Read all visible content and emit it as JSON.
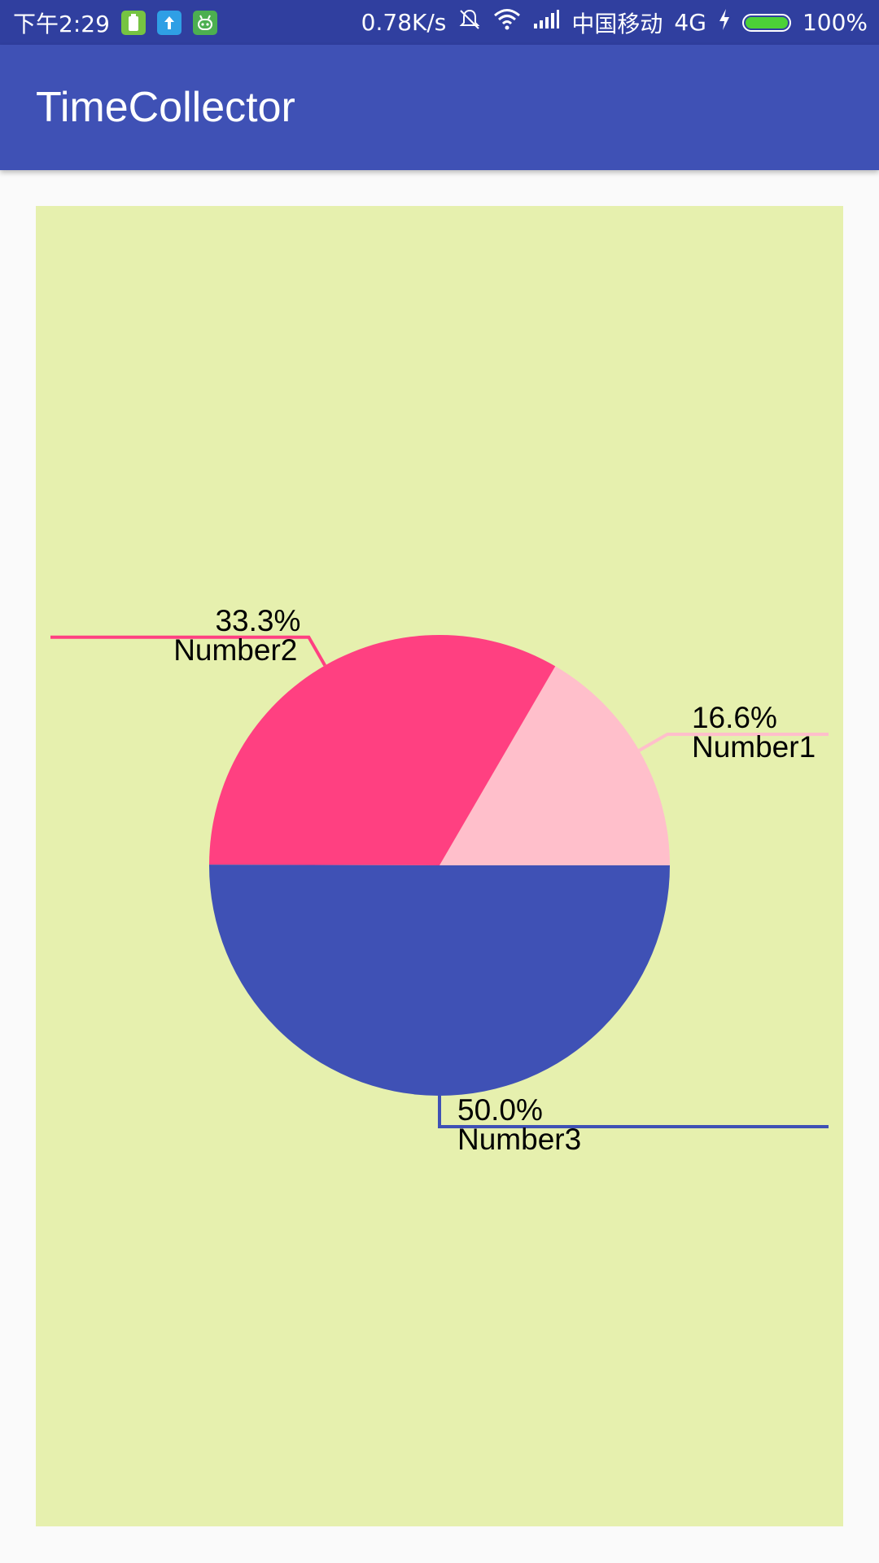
{
  "status_bar": {
    "time": "下午2:29",
    "network_speed": "0.78K/s",
    "carrier": "中国移动",
    "network_type": "4G",
    "battery_percent": "100%",
    "battery_level": 1.0,
    "icons": [
      "battery-notify-icon",
      "upload-icon",
      "android-icon",
      "mute-bell-icon",
      "wifi-icon",
      "signal-icon",
      "charging-icon",
      "battery-icon"
    ]
  },
  "app_bar": {
    "title": "TimeCollector"
  },
  "colors": {
    "status_bar": "#303f9f",
    "app_bar": "#3f51b5",
    "chart_background": "#e6f0ae",
    "page_background": "#fafafa"
  },
  "chart_data": {
    "type": "pie",
    "start_angle_deg": 0,
    "slices": [
      {
        "label": "Number1",
        "value": 16.6,
        "percent_label": "16.6%",
        "color": "#ffbfcb"
      },
      {
        "label": "Number2",
        "value": 33.3,
        "percent_label": "33.3%",
        "color": "#ff4081"
      },
      {
        "label": "Number3",
        "value": 50.0,
        "percent_label": "50.0%",
        "color": "#3f51b5"
      }
    ]
  }
}
